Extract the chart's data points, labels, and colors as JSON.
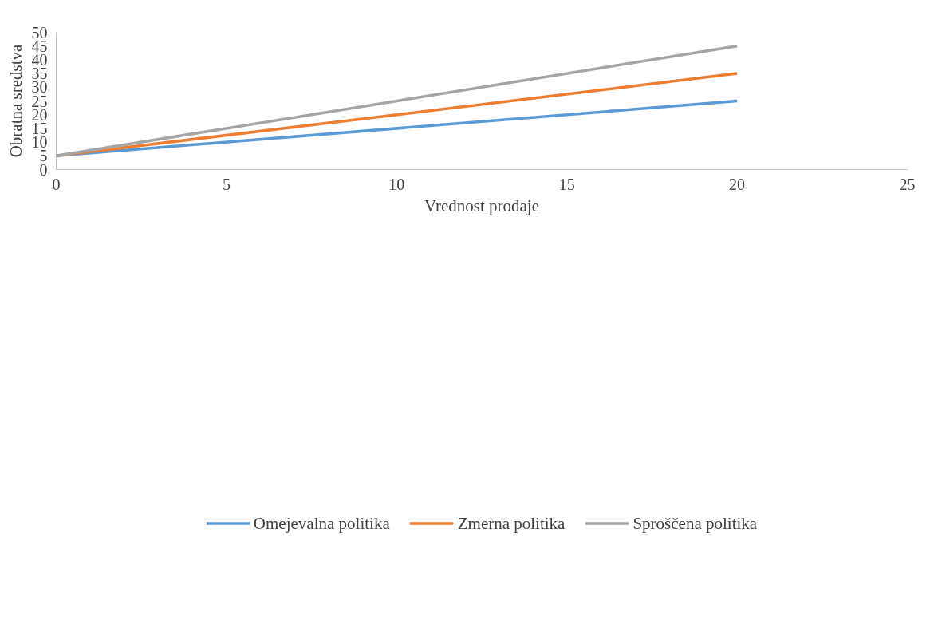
{
  "chart_data": {
    "type": "line",
    "xlabel": "Vrednost prodaje",
    "ylabel": "Obratna sredstva",
    "x": [
      0,
      20
    ],
    "series": [
      {
        "name": "Omejevalna politika",
        "color": "#5b9bd5",
        "values": [
          5,
          25
        ]
      },
      {
        "name": "Zmerna politika",
        "color": "#ed7d31",
        "values": [
          5,
          35
        ]
      },
      {
        "name": "Sproščena politika",
        "color": "#a5a5a5",
        "values": [
          5,
          45
        ]
      }
    ],
    "xlim": [
      0,
      25
    ],
    "xticks": [
      0,
      5,
      10,
      15,
      20,
      25
    ],
    "ylim": [
      0,
      50
    ],
    "yticks": [
      0,
      5,
      10,
      15,
      20,
      25,
      30,
      35,
      40,
      45,
      50
    ],
    "grid": false,
    "legend": "bottom",
    "marker": "none",
    "line_style": "solid"
  }
}
